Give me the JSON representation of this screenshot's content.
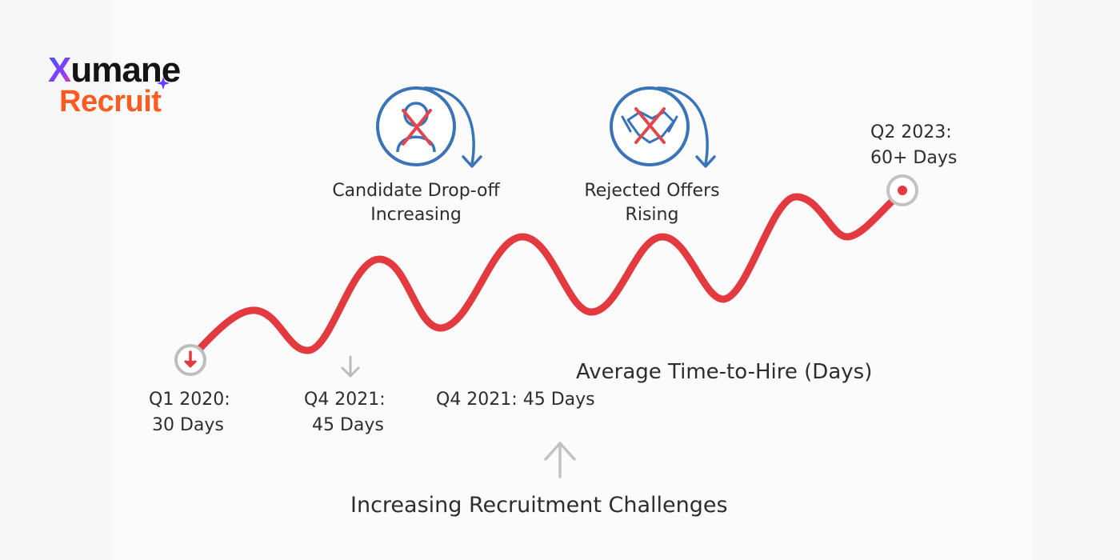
{
  "logo": {
    "brand_top_rest": "umane",
    "brand_top_x": "X",
    "brand_bottom": "Recruit"
  },
  "callouts": {
    "dropoff": {
      "line1": "Candidate Drop-off",
      "line2": "Increasing",
      "icon": "person-crossed-icon"
    },
    "rejected": {
      "line1": "Rejected Offers",
      "line2": "Rising",
      "icon": "handshake-crossed-icon"
    }
  },
  "milestones": {
    "start": {
      "line1": "Q1 2020:",
      "line2": "30 Days"
    },
    "mid": {
      "line1": "Q4 2021:",
      "line2": "45 Days"
    },
    "mid_inline": "Q4 2021: 45 Days",
    "end": {
      "line1": "Q2 2023:",
      "line2": "60+ Days"
    }
  },
  "line_label": "Average Time-to-Hire (Days)",
  "footer_caption": "Increasing Recruitment Challenges",
  "colors": {
    "line": "#e23a3f",
    "icon_blue": "#3a74b8",
    "cross": "#e0474c",
    "muted": "#b8b8b8"
  }
}
